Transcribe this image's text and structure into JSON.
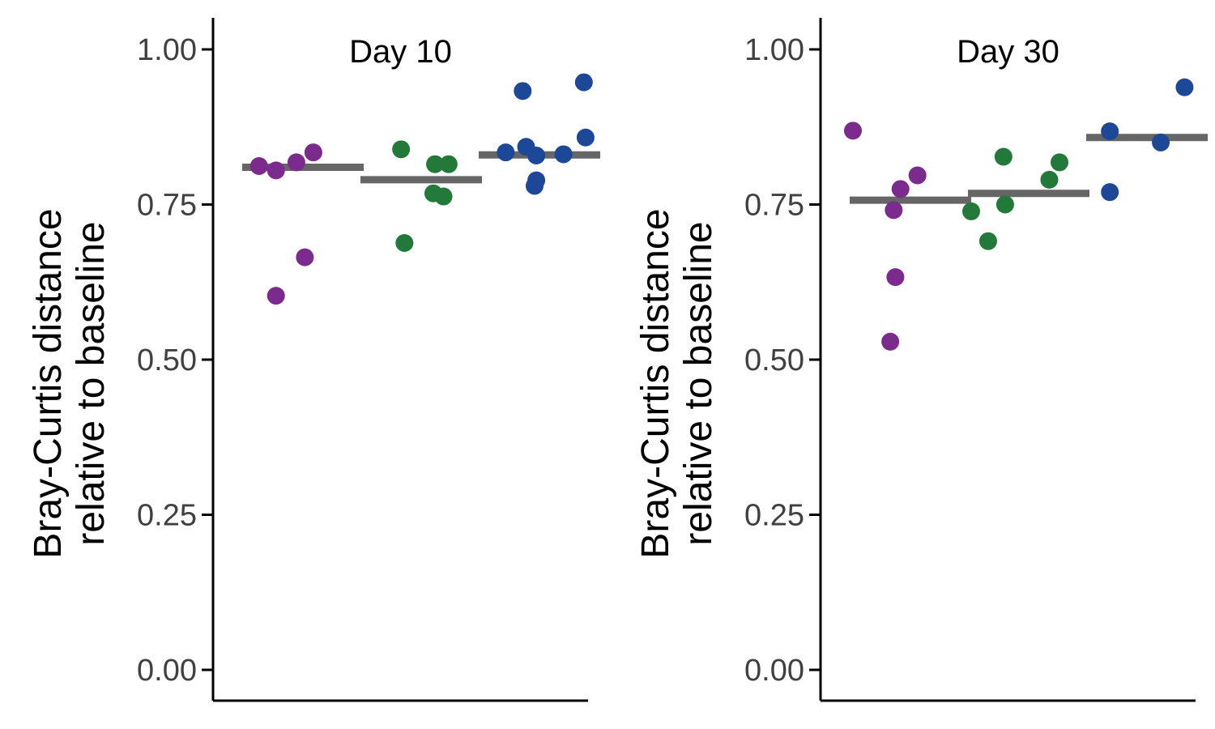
{
  "chart_data": [
    {
      "type": "scatter",
      "title": "Day 10",
      "ylabel": [
        "Bray-Curtis distance",
        "relative to baseline"
      ],
      "ylim": [
        0,
        1.05
      ],
      "yticks": [
        "0.00",
        "0.25",
        "0.50",
        "0.75",
        "1.00"
      ],
      "tick_values": [
        0,
        0.25,
        0.5,
        0.75,
        1.0
      ],
      "groups": [
        {
          "color": "#7B2A8E",
          "mean": 0.81,
          "points": [
            {
              "x": 1,
              "y": 0.812
            },
            {
              "x": 1.5,
              "y": 0.805
            },
            {
              "x": 2.1,
              "y": 0.818
            },
            {
              "x": 2.6,
              "y": 0.834
            },
            {
              "x": 2.35,
              "y": 0.665
            },
            {
              "x": 1.5,
              "y": 0.603
            }
          ]
        },
        {
          "color": "#22793A",
          "mean": 0.79,
          "points": [
            {
              "x": 1.7,
              "y": 0.839
            },
            {
              "x": 2.7,
              "y": 0.815
            },
            {
              "x": 3.1,
              "y": 0.815
            },
            {
              "x": 2.65,
              "y": 0.768
            },
            {
              "x": 2.95,
              "y": 0.763
            },
            {
              "x": 1.8,
              "y": 0.688
            }
          ]
        },
        {
          "color": "#1C4897",
          "mean": 0.83,
          "points": [
            {
              "x": 1.8,
              "y": 0.933
            },
            {
              "x": 3.6,
              "y": 0.947
            },
            {
              "x": 3.65,
              "y": 0.858
            },
            {
              "x": 1.3,
              "y": 0.834
            },
            {
              "x": 1.9,
              "y": 0.843
            },
            {
              "x": 2.2,
              "y": 0.829
            },
            {
              "x": 3.0,
              "y": 0.831
            },
            {
              "x": 2.2,
              "y": 0.789
            },
            {
              "x": 2.15,
              "y": 0.78
            }
          ]
        }
      ]
    },
    {
      "type": "scatter",
      "title": "Day 30",
      "ylabel": [
        "Bray-Curtis distance",
        "relative to baseline"
      ],
      "ylim": [
        0,
        1.05
      ],
      "yticks": [
        "0.00",
        "0.25",
        "0.50",
        "0.75",
        "1.00"
      ],
      "tick_values": [
        0,
        0.25,
        0.5,
        0.75,
        1.0
      ],
      "groups": [
        {
          "color": "#7B2A8E",
          "mean": 0.757,
          "points": [
            {
              "x": 0.6,
              "y": 0.869
            },
            {
              "x": 2.5,
              "y": 0.797
            },
            {
              "x": 2.0,
              "y": 0.775
            },
            {
              "x": 1.8,
              "y": 0.741
            },
            {
              "x": 1.85,
              "y": 0.633
            },
            {
              "x": 1.7,
              "y": 0.529
            }
          ]
        },
        {
          "color": "#22793A",
          "mean": 0.768,
          "points": [
            {
              "x": 1.55,
              "y": 0.827
            },
            {
              "x": 3.2,
              "y": 0.818
            },
            {
              "x": 2.9,
              "y": 0.79
            },
            {
              "x": 1.6,
              "y": 0.75
            },
            {
              "x": 0.6,
              "y": 0.739
            },
            {
              "x": 1.1,
              "y": 0.691
            }
          ]
        },
        {
          "color": "#1C4897",
          "mean": 0.858,
          "points": [
            {
              "x": 1.2,
              "y": 0.868
            },
            {
              "x": 3.4,
              "y": 0.939
            },
            {
              "x": 2.7,
              "y": 0.85
            },
            {
              "x": 1.2,
              "y": 0.77
            }
          ]
        }
      ]
    }
  ]
}
